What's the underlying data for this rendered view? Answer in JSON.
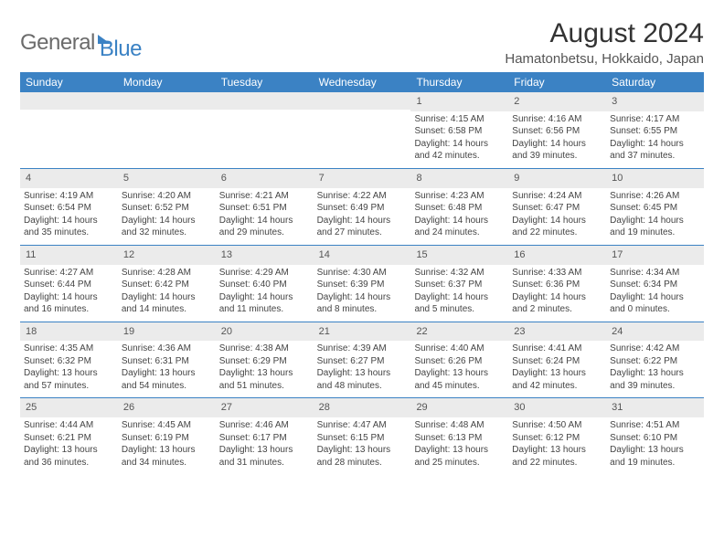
{
  "branding": {
    "logo_part1": "General",
    "logo_part2": "Blue"
  },
  "header": {
    "month_title": "August 2024",
    "location": "Hamatonbetsu, Hokkaido, Japan"
  },
  "colors": {
    "header_bg": "#3b82c4",
    "header_text": "#ffffff",
    "daynum_bg": "#ebebeb",
    "text": "#444444",
    "week_border": "#3b82c4"
  },
  "weekdays": [
    "Sunday",
    "Monday",
    "Tuesday",
    "Wednesday",
    "Thursday",
    "Friday",
    "Saturday"
  ],
  "weeks": [
    [
      {
        "n": "",
        "sr": "",
        "ss": "",
        "dl": ""
      },
      {
        "n": "",
        "sr": "",
        "ss": "",
        "dl": ""
      },
      {
        "n": "",
        "sr": "",
        "ss": "",
        "dl": ""
      },
      {
        "n": "",
        "sr": "",
        "ss": "",
        "dl": ""
      },
      {
        "n": "1",
        "sr": "Sunrise: 4:15 AM",
        "ss": "Sunset: 6:58 PM",
        "dl": "Daylight: 14 hours and 42 minutes."
      },
      {
        "n": "2",
        "sr": "Sunrise: 4:16 AM",
        "ss": "Sunset: 6:56 PM",
        "dl": "Daylight: 14 hours and 39 minutes."
      },
      {
        "n": "3",
        "sr": "Sunrise: 4:17 AM",
        "ss": "Sunset: 6:55 PM",
        "dl": "Daylight: 14 hours and 37 minutes."
      }
    ],
    [
      {
        "n": "4",
        "sr": "Sunrise: 4:19 AM",
        "ss": "Sunset: 6:54 PM",
        "dl": "Daylight: 14 hours and 35 minutes."
      },
      {
        "n": "5",
        "sr": "Sunrise: 4:20 AM",
        "ss": "Sunset: 6:52 PM",
        "dl": "Daylight: 14 hours and 32 minutes."
      },
      {
        "n": "6",
        "sr": "Sunrise: 4:21 AM",
        "ss": "Sunset: 6:51 PM",
        "dl": "Daylight: 14 hours and 29 minutes."
      },
      {
        "n": "7",
        "sr": "Sunrise: 4:22 AM",
        "ss": "Sunset: 6:49 PM",
        "dl": "Daylight: 14 hours and 27 minutes."
      },
      {
        "n": "8",
        "sr": "Sunrise: 4:23 AM",
        "ss": "Sunset: 6:48 PM",
        "dl": "Daylight: 14 hours and 24 minutes."
      },
      {
        "n": "9",
        "sr": "Sunrise: 4:24 AM",
        "ss": "Sunset: 6:47 PM",
        "dl": "Daylight: 14 hours and 22 minutes."
      },
      {
        "n": "10",
        "sr": "Sunrise: 4:26 AM",
        "ss": "Sunset: 6:45 PM",
        "dl": "Daylight: 14 hours and 19 minutes."
      }
    ],
    [
      {
        "n": "11",
        "sr": "Sunrise: 4:27 AM",
        "ss": "Sunset: 6:44 PM",
        "dl": "Daylight: 14 hours and 16 minutes."
      },
      {
        "n": "12",
        "sr": "Sunrise: 4:28 AM",
        "ss": "Sunset: 6:42 PM",
        "dl": "Daylight: 14 hours and 14 minutes."
      },
      {
        "n": "13",
        "sr": "Sunrise: 4:29 AM",
        "ss": "Sunset: 6:40 PM",
        "dl": "Daylight: 14 hours and 11 minutes."
      },
      {
        "n": "14",
        "sr": "Sunrise: 4:30 AM",
        "ss": "Sunset: 6:39 PM",
        "dl": "Daylight: 14 hours and 8 minutes."
      },
      {
        "n": "15",
        "sr": "Sunrise: 4:32 AM",
        "ss": "Sunset: 6:37 PM",
        "dl": "Daylight: 14 hours and 5 minutes."
      },
      {
        "n": "16",
        "sr": "Sunrise: 4:33 AM",
        "ss": "Sunset: 6:36 PM",
        "dl": "Daylight: 14 hours and 2 minutes."
      },
      {
        "n": "17",
        "sr": "Sunrise: 4:34 AM",
        "ss": "Sunset: 6:34 PM",
        "dl": "Daylight: 14 hours and 0 minutes."
      }
    ],
    [
      {
        "n": "18",
        "sr": "Sunrise: 4:35 AM",
        "ss": "Sunset: 6:32 PM",
        "dl": "Daylight: 13 hours and 57 minutes."
      },
      {
        "n": "19",
        "sr": "Sunrise: 4:36 AM",
        "ss": "Sunset: 6:31 PM",
        "dl": "Daylight: 13 hours and 54 minutes."
      },
      {
        "n": "20",
        "sr": "Sunrise: 4:38 AM",
        "ss": "Sunset: 6:29 PM",
        "dl": "Daylight: 13 hours and 51 minutes."
      },
      {
        "n": "21",
        "sr": "Sunrise: 4:39 AM",
        "ss": "Sunset: 6:27 PM",
        "dl": "Daylight: 13 hours and 48 minutes."
      },
      {
        "n": "22",
        "sr": "Sunrise: 4:40 AM",
        "ss": "Sunset: 6:26 PM",
        "dl": "Daylight: 13 hours and 45 minutes."
      },
      {
        "n": "23",
        "sr": "Sunrise: 4:41 AM",
        "ss": "Sunset: 6:24 PM",
        "dl": "Daylight: 13 hours and 42 minutes."
      },
      {
        "n": "24",
        "sr": "Sunrise: 4:42 AM",
        "ss": "Sunset: 6:22 PM",
        "dl": "Daylight: 13 hours and 39 minutes."
      }
    ],
    [
      {
        "n": "25",
        "sr": "Sunrise: 4:44 AM",
        "ss": "Sunset: 6:21 PM",
        "dl": "Daylight: 13 hours and 36 minutes."
      },
      {
        "n": "26",
        "sr": "Sunrise: 4:45 AM",
        "ss": "Sunset: 6:19 PM",
        "dl": "Daylight: 13 hours and 34 minutes."
      },
      {
        "n": "27",
        "sr": "Sunrise: 4:46 AM",
        "ss": "Sunset: 6:17 PM",
        "dl": "Daylight: 13 hours and 31 minutes."
      },
      {
        "n": "28",
        "sr": "Sunrise: 4:47 AM",
        "ss": "Sunset: 6:15 PM",
        "dl": "Daylight: 13 hours and 28 minutes."
      },
      {
        "n": "29",
        "sr": "Sunrise: 4:48 AM",
        "ss": "Sunset: 6:13 PM",
        "dl": "Daylight: 13 hours and 25 minutes."
      },
      {
        "n": "30",
        "sr": "Sunrise: 4:50 AM",
        "ss": "Sunset: 6:12 PM",
        "dl": "Daylight: 13 hours and 22 minutes."
      },
      {
        "n": "31",
        "sr": "Sunrise: 4:51 AM",
        "ss": "Sunset: 6:10 PM",
        "dl": "Daylight: 13 hours and 19 minutes."
      }
    ]
  ]
}
